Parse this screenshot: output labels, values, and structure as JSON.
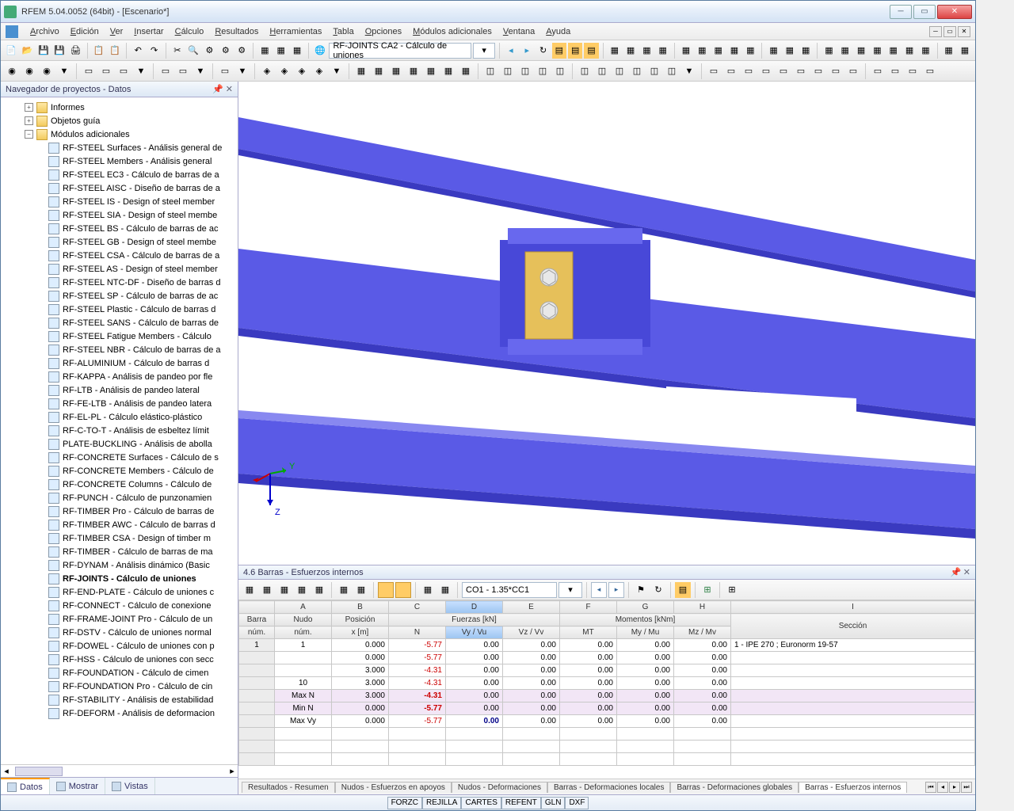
{
  "window": {
    "title": "RFEM 5.04.0052 (64bit) - [Escenario*]"
  },
  "menu": [
    "Archivo",
    "Edición",
    "Ver",
    "Insertar",
    "Cálculo",
    "Resultados",
    "Herramientas",
    "Tabla",
    "Opciones",
    "Módulos adicionales",
    "Ventana",
    "Ayuda"
  ],
  "toolbar1_combo": "RF-JOINTS CA2 - Cálculo de uniones",
  "nav": {
    "title": "Navegador de proyectos - Datos",
    "folders": [
      {
        "exp": "+",
        "label": "Informes"
      },
      {
        "exp": "+",
        "label": "Objetos guía"
      },
      {
        "exp": "−",
        "label": "Módulos adicionales"
      }
    ],
    "modules": [
      "RF-STEEL Surfaces - Análisis general de",
      "RF-STEEL Members - Análisis general",
      "RF-STEEL EC3 - Cálculo de barras de a",
      "RF-STEEL AISC - Diseño de barras de a",
      "RF-STEEL IS - Design of steel member",
      "RF-STEEL SIA - Design of steel membe",
      "RF-STEEL BS - Cálculo de barras de ac",
      "RF-STEEL GB - Design of steel membe",
      "RF-STEEL CSA - Cálculo de barras de a",
      "RF-STEEL AS - Design of steel member",
      "RF-STEEL NTC-DF - Diseño de barras d",
      "RF-STEEL SP - Cálculo de barras de ac",
      "RF-STEEL Plastic - Cálculo de barras d",
      "RF-STEEL SANS - Cálculo de barras de",
      "RF-STEEL Fatigue Members - Cálculo",
      "RF-STEEL NBR - Cálculo de barras de a",
      "RF-ALUMINIUM - Cálculo de barras d",
      "RF-KAPPA - Análisis de pandeo por fle",
      "RF-LTB - Análisis de pandeo lateral",
      "RF-FE-LTB - Análisis de pandeo latera",
      "RF-EL-PL - Cálculo elástico-plástico",
      "RF-C-TO-T - Análisis de esbeltez límit",
      "PLATE-BUCKLING - Análisis de abolla",
      "RF-CONCRETE Surfaces - Cálculo de s",
      "RF-CONCRETE Members - Cálculo de",
      "RF-CONCRETE Columns - Cálculo de",
      "RF-PUNCH - Cálculo de punzonamien",
      "RF-TIMBER Pro - Cálculo de barras de",
      "RF-TIMBER AWC - Cálculo de barras d",
      "RF-TIMBER CSA - Design of timber m",
      "RF-TIMBER - Cálculo de barras de ma",
      "RF-DYNAM - Análisis dinámico (Basic",
      "RF-JOINTS - Cálculo de uniones",
      "RF-END-PLATE - Cálculo de uniones c",
      "RF-CONNECT  - Cálculo de conexione",
      "RF-FRAME-JOINT Pro - Cálculo de un",
      "RF-DSTV - Cálculo de uniones normal",
      "RF-DOWEL - Cálculo de uniones con p",
      "RF-HSS - Cálculo de uniones con secc",
      "RF-FOUNDATION - Cálculo de cimen",
      "RF-FOUNDATION Pro - Cálculo de cin",
      "RF-STABILITY - Análisis de estabilidad",
      "RF-DEFORM - Análisis de deformacion"
    ],
    "bold_index": 32,
    "tabs": [
      "Datos",
      "Mostrar",
      "Vistas"
    ]
  },
  "bottom_panel": {
    "title": "4.6 Barras - Esfuerzos internos",
    "combo": "CO1 - 1.35*CC1",
    "col_letters": [
      "A",
      "B",
      "C",
      "D",
      "E",
      "F",
      "G",
      "H",
      "I"
    ],
    "group_headers": {
      "barra": "Barra",
      "nudo": "Nudo",
      "pos": "Posición",
      "fuerzas": "Fuerzas [kN]",
      "momentos": "Momentos [kNm]",
      "seccion": "Sección"
    },
    "sub_headers": {
      "num": "núm.",
      "num2": "núm.",
      "xm": "x [m]",
      "N": "N",
      "Vy": "Vy / Vu",
      "Vz": "Vz / Vv",
      "Mt": "MT",
      "My": "My / Mu",
      "Mz": "Mz / Mv"
    },
    "rows": [
      {
        "barra": "1",
        "nudo": "1",
        "x": "0.000",
        "N": "-5.77",
        "Vy": "0.00",
        "Vz": "0.00",
        "Mt": "0.00",
        "My": "0.00",
        "Mz": "0.00",
        "sec": "1 - IPE 270 ; Euronorm 19-57",
        "sel": true
      },
      {
        "barra": "",
        "nudo": "",
        "x": "0.000",
        "N": "-5.77",
        "Vy": "0.00",
        "Vz": "0.00",
        "Mt": "0.00",
        "My": "0.00",
        "Mz": "0.00",
        "sec": ""
      },
      {
        "barra": "",
        "nudo": "",
        "x": "3.000",
        "N": "-4.31",
        "Vy": "0.00",
        "Vz": "0.00",
        "Mt": "0.00",
        "My": "0.00",
        "Mz": "0.00",
        "sec": ""
      },
      {
        "barra": "",
        "nudo": "10",
        "x": "3.000",
        "N": "-4.31",
        "Vy": "0.00",
        "Vz": "0.00",
        "Mt": "0.00",
        "My": "0.00",
        "Mz": "0.00",
        "sec": ""
      },
      {
        "barra": "",
        "nudo": "Max N",
        "x": "3.000",
        "N": "-4.31",
        "Vy": "0.00",
        "Vz": "0.00",
        "Mt": "0.00",
        "My": "0.00",
        "Mz": "0.00",
        "sec": "",
        "max": true,
        "boldN": true
      },
      {
        "barra": "",
        "nudo": "Min N",
        "x": "0.000",
        "N": "-5.77",
        "Vy": "0.00",
        "Vz": "0.00",
        "Mt": "0.00",
        "My": "0.00",
        "Mz": "0.00",
        "sec": "",
        "max": true,
        "boldN": true
      },
      {
        "barra": "",
        "nudo": "Max Vy",
        "x": "0.000",
        "N": "-5.77",
        "Vy": "0.00",
        "Vz": "0.00",
        "Mt": "0.00",
        "My": "0.00",
        "Mz": "0.00",
        "sec": "",
        "boldVy": true
      }
    ],
    "tabs": [
      "Resultados - Resumen",
      "Nudos - Esfuerzos en apoyos",
      "Nudos - Deformaciones",
      "Barras - Deformaciones locales",
      "Barras - Deformaciones globales",
      "Barras - Esfuerzos internos"
    ],
    "active_tab": 5
  },
  "status": [
    "FORZC",
    "REJILLA",
    "CARTES",
    "REFENT",
    "GLN",
    "DXF"
  ],
  "colors": {
    "beam_main": "#5a5ae6",
    "beam_dark": "#3a3ac0",
    "beam_light": "#8888f0",
    "plate": "#e6c05a",
    "bolt": "#e8e8e8"
  }
}
